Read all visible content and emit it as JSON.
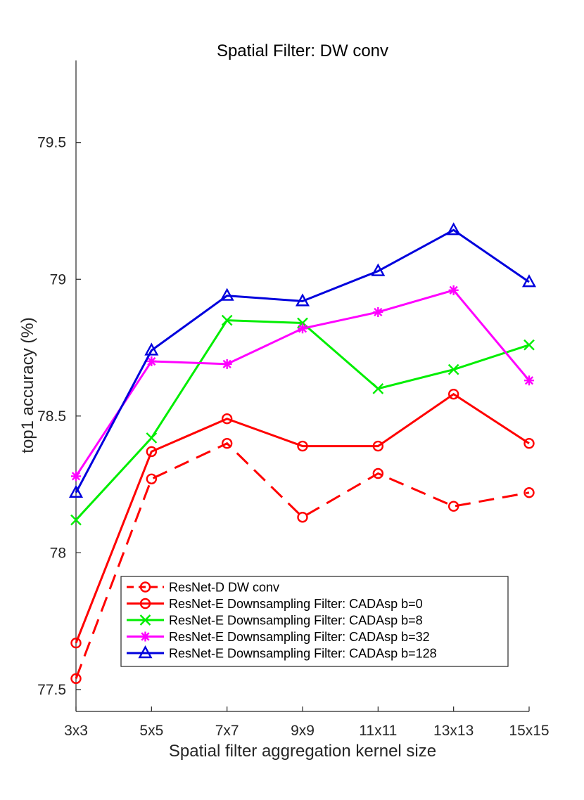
{
  "chart_data": {
    "type": "line",
    "title": "Spatial Filter: DW conv",
    "xlabel": "Spatial filter aggregation kernel size",
    "ylabel": "top1 accuracy (%)",
    "categories": [
      "3x3",
      "5x5",
      "7x7",
      "9x9",
      "11x11",
      "13x13",
      "15x15"
    ],
    "ylim": [
      77.42,
      79.8
    ],
    "yticks": [
      77.5,
      78,
      78.5,
      79,
      79.5
    ],
    "ytick_labels": [
      "77.5",
      "78",
      "78.5",
      "79",
      "79.5"
    ],
    "grid": false,
    "legend_position": "bottom-center",
    "series": [
      {
        "name": "ResNet-D DW conv",
        "values": [
          77.54,
          78.27,
          78.4,
          78.13,
          78.29,
          78.17,
          78.22
        ],
        "color": "#ff0000",
        "line_style": "dashed",
        "marker": "circle"
      },
      {
        "name": "ResNet-E Downsampling Filter: CADAsp b=0",
        "values": [
          77.67,
          78.37,
          78.49,
          78.39,
          78.39,
          78.58,
          78.4
        ],
        "color": "#ff0000",
        "line_style": "solid",
        "marker": "circle"
      },
      {
        "name": "ResNet-E Downsampling Filter: CADAsp b=8",
        "values": [
          78.12,
          78.42,
          78.85,
          78.84,
          78.6,
          78.67,
          78.76
        ],
        "color": "#00ee00",
        "line_style": "solid",
        "marker": "x"
      },
      {
        "name": "ResNet-E Downsampling Filter: CADAsp b=32",
        "values": [
          78.28,
          78.7,
          78.69,
          78.82,
          78.88,
          78.96,
          78.63
        ],
        "color": "#ff00ff",
        "line_style": "solid",
        "marker": "asterisk"
      },
      {
        "name": "ResNet-E Downsampling Filter: CADAsp b=128",
        "values": [
          78.22,
          78.74,
          78.94,
          78.92,
          79.03,
          79.18,
          78.99
        ],
        "color": "#0000dd",
        "line_style": "solid",
        "marker": "triangle"
      }
    ]
  }
}
